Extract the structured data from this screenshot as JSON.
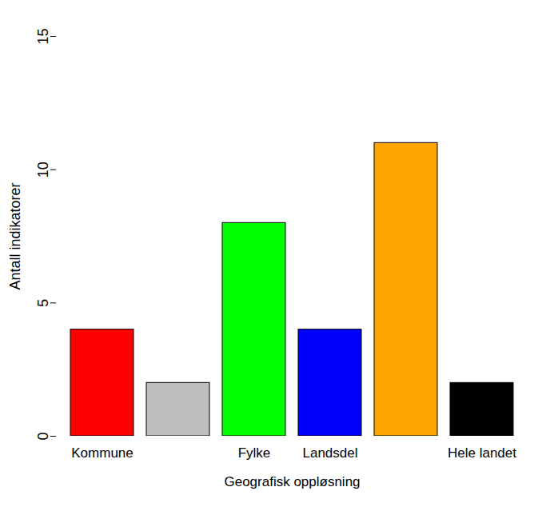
{
  "chart_data": {
    "type": "bar",
    "categories": [
      "Kommune",
      null,
      "Fylke",
      "Landsdel",
      null,
      "Hele landet"
    ],
    "values": [
      4,
      2,
      8,
      4,
      11,
      2
    ],
    "colors": [
      "#ff0000",
      "#bebebe",
      "#00ff00",
      "#0000ff",
      "#ffa500",
      "#000000"
    ],
    "x_label": "Geografisk oppløsning",
    "y_label": "Antall indikatorer",
    "ylim": [
      0,
      15
    ],
    "yticks": [
      0,
      5,
      10,
      15
    ],
    "grid": false
  }
}
